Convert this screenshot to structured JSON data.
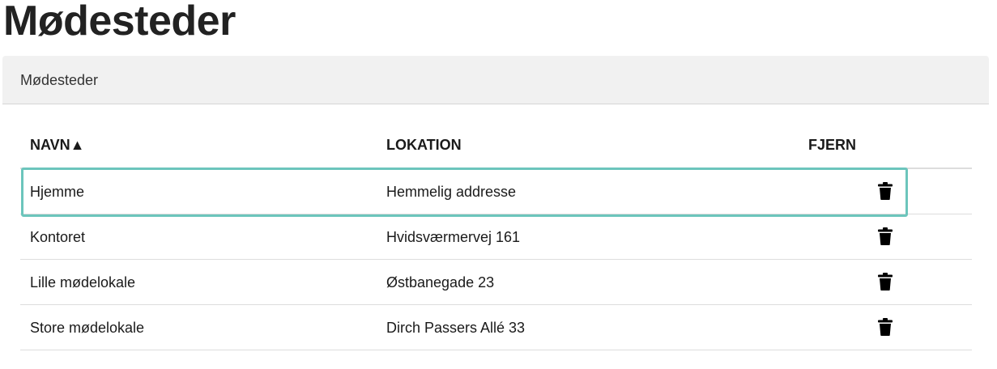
{
  "page_title": "Mødesteder",
  "panel_title": "Mødesteder",
  "columns": {
    "name": "NAVN▲",
    "location": "LOKATION",
    "remove": "FJERN"
  },
  "rows": [
    {
      "name": "Hjemme",
      "location": "Hemmelig addresse",
      "icon": "trash-icon"
    },
    {
      "name": "Kontoret",
      "location": "Hvidsværmervej 161",
      "icon": "trash-icon"
    },
    {
      "name": "Lille mødelokale",
      "location": "Østbanegade 23",
      "icon": "trash-icon"
    },
    {
      "name": "Store mødelokale",
      "location": "Dirch Passers Allé 33",
      "icon": "trash-icon"
    }
  ],
  "highlight_color": "#6cc5bc"
}
